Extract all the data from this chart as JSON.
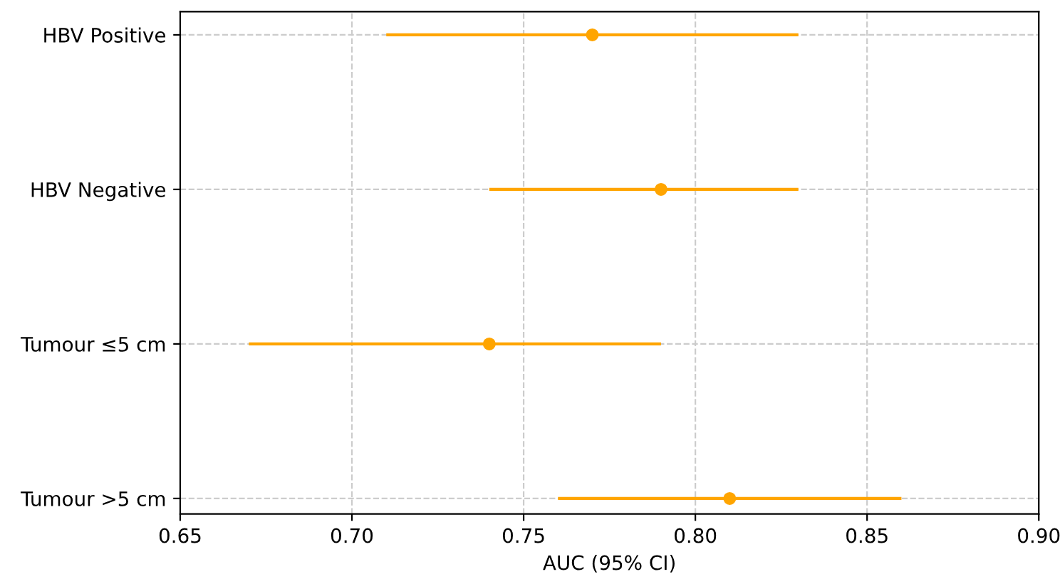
{
  "chart_data": {
    "type": "scatter",
    "orientation": "horizontal",
    "xlabel": "AUC (95% CI)",
    "categories": [
      "HBV Positive",
      "HBV Negative",
      "Tumour ≤5 cm",
      "Tumour >5 cm"
    ],
    "values": [
      0.77,
      0.79,
      0.74,
      0.81
    ],
    "errors": [
      [
        0.71,
        0.83
      ],
      [
        0.74,
        0.83
      ],
      [
        0.67,
        0.79
      ],
      [
        0.76,
        0.86
      ]
    ],
    "color": "#ffa500",
    "marker": "circle",
    "grid": true,
    "xlim": [
      0.65,
      0.9
    ],
    "xticks": [
      0.65,
      {
        "value": 0.7,
        "label": "0.70"
      },
      0.75,
      {
        "value": 0.8,
        "label": "0.80"
      },
      0.85,
      {
        "value": 0.9,
        "label": "0.90"
      }
    ]
  }
}
